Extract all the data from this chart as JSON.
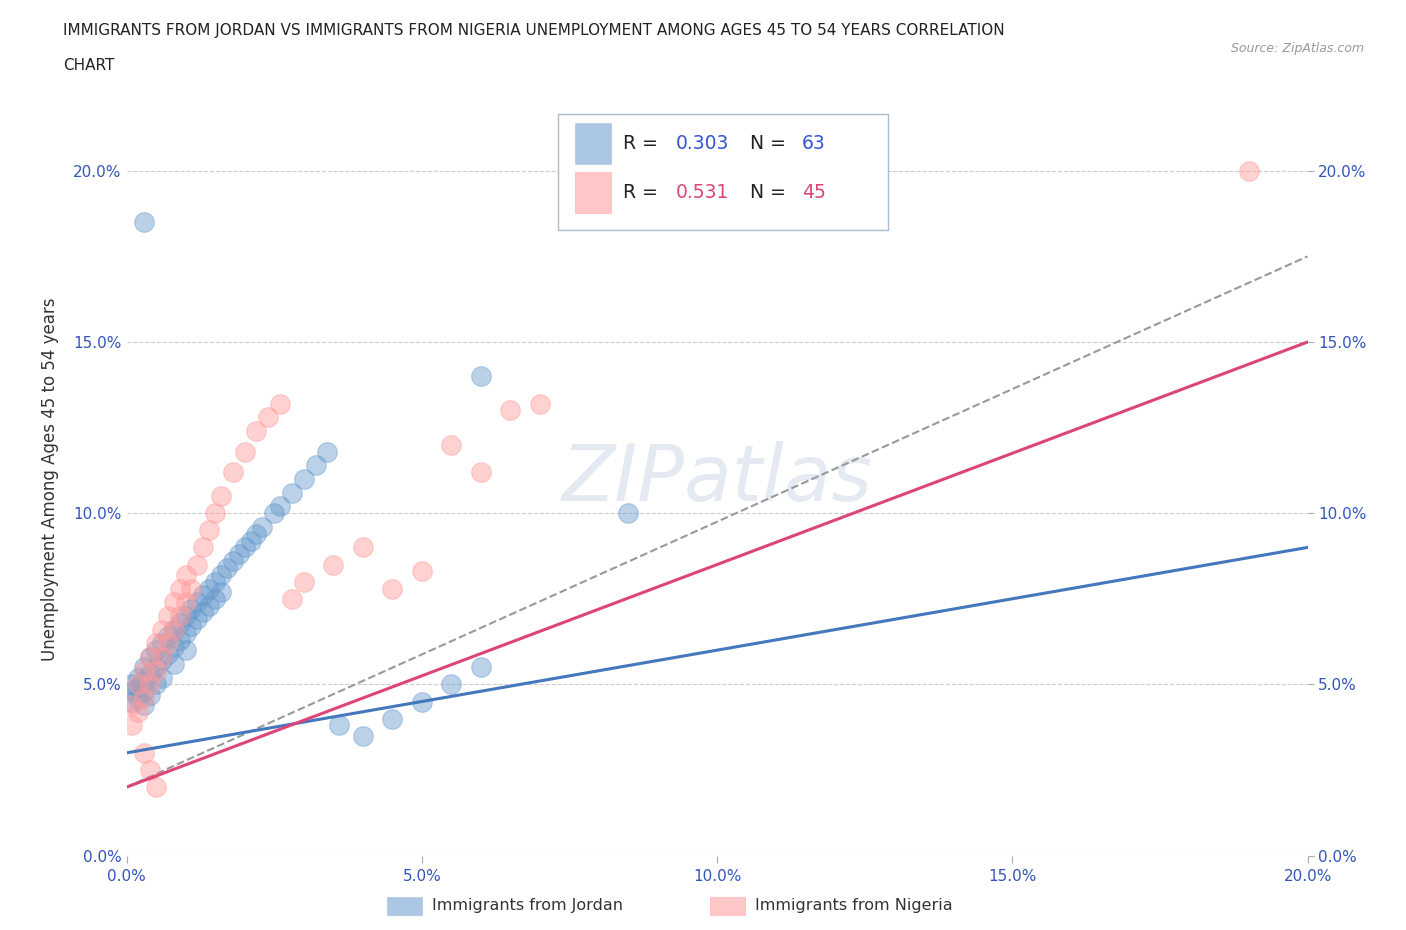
{
  "title_line1": "IMMIGRANTS FROM JORDAN VS IMMIGRANTS FROM NIGERIA UNEMPLOYMENT AMONG AGES 45 TO 54 YEARS CORRELATION",
  "title_line2": "CHART",
  "source_text": "Source: ZipAtlas.com",
  "ylabel": "Unemployment Among Ages 45 to 54 years",
  "xlabel_jordan": "Immigrants from Jordan",
  "xlabel_nigeria": "Immigrants from Nigeria",
  "xlim": [
    0.0,
    0.2
  ],
  "ylim": [
    0.0,
    0.22
  ],
  "yticks": [
    0.0,
    0.05,
    0.1,
    0.15,
    0.2
  ],
  "xticks": [
    0.0,
    0.05,
    0.1,
    0.15,
    0.2
  ],
  "ytick_labels": [
    "0.0%",
    "5.0%",
    "10.0%",
    "15.0%",
    "20.0%"
  ],
  "xtick_labels": [
    "0.0%",
    "5.0%",
    "10.0%",
    "15.0%",
    "20.0%"
  ],
  "jordan_color": "#6699cc",
  "nigeria_color": "#ff9999",
  "jordan_R": "0.303",
  "jordan_N": "63",
  "nigeria_R": "0.531",
  "nigeria_N": "45",
  "watermark": "ZIPatlas",
  "jordan_scatter_x": [
    0.001,
    0.001,
    0.001,
    0.002,
    0.002,
    0.002,
    0.003,
    0.003,
    0.003,
    0.003,
    0.004,
    0.004,
    0.004,
    0.005,
    0.005,
    0.005,
    0.006,
    0.006,
    0.006,
    0.007,
    0.007,
    0.008,
    0.008,
    0.008,
    0.009,
    0.009,
    0.01,
    0.01,
    0.01,
    0.011,
    0.011,
    0.012,
    0.012,
    0.013,
    0.013,
    0.014,
    0.014,
    0.015,
    0.015,
    0.016,
    0.016,
    0.017,
    0.018,
    0.019,
    0.02,
    0.021,
    0.022,
    0.023,
    0.025,
    0.026,
    0.028,
    0.03,
    0.032,
    0.034,
    0.036,
    0.04,
    0.045,
    0.05,
    0.055,
    0.06,
    0.003,
    0.06,
    0.085
  ],
  "jordan_scatter_y": [
    0.05,
    0.048,
    0.045,
    0.052,
    0.049,
    0.046,
    0.055,
    0.051,
    0.048,
    0.044,
    0.058,
    0.053,
    0.047,
    0.06,
    0.055,
    0.05,
    0.062,
    0.057,
    0.052,
    0.064,
    0.059,
    0.066,
    0.061,
    0.056,
    0.068,
    0.063,
    0.07,
    0.065,
    0.06,
    0.072,
    0.067,
    0.074,
    0.069,
    0.076,
    0.071,
    0.078,
    0.073,
    0.08,
    0.075,
    0.082,
    0.077,
    0.084,
    0.086,
    0.088,
    0.09,
    0.092,
    0.094,
    0.096,
    0.1,
    0.102,
    0.106,
    0.11,
    0.114,
    0.118,
    0.038,
    0.035,
    0.04,
    0.045,
    0.05,
    0.055,
    0.185,
    0.14,
    0.1
  ],
  "nigeria_scatter_x": [
    0.001,
    0.001,
    0.002,
    0.002,
    0.003,
    0.003,
    0.004,
    0.004,
    0.005,
    0.005,
    0.006,
    0.006,
    0.007,
    0.007,
    0.008,
    0.008,
    0.009,
    0.009,
    0.01,
    0.01,
    0.011,
    0.012,
    0.013,
    0.014,
    0.015,
    0.016,
    0.018,
    0.02,
    0.022,
    0.024,
    0.026,
    0.028,
    0.03,
    0.035,
    0.04,
    0.045,
    0.05,
    0.06,
    0.065,
    0.07,
    0.055,
    0.003,
    0.004,
    0.005,
    0.19
  ],
  "nigeria_scatter_y": [
    0.038,
    0.044,
    0.042,
    0.05,
    0.046,
    0.054,
    0.05,
    0.058,
    0.054,
    0.062,
    0.058,
    0.066,
    0.062,
    0.07,
    0.066,
    0.074,
    0.07,
    0.078,
    0.074,
    0.082,
    0.078,
    0.085,
    0.09,
    0.095,
    0.1,
    0.105,
    0.112,
    0.118,
    0.124,
    0.128,
    0.132,
    0.075,
    0.08,
    0.085,
    0.09,
    0.078,
    0.083,
    0.112,
    0.13,
    0.132,
    0.12,
    0.03,
    0.025,
    0.02,
    0.2
  ],
  "jordan_trend": [
    0.03,
    0.09
  ],
  "nigeria_trend": [
    0.02,
    0.15
  ],
  "dashed_trend": [
    0.02,
    0.175
  ]
}
